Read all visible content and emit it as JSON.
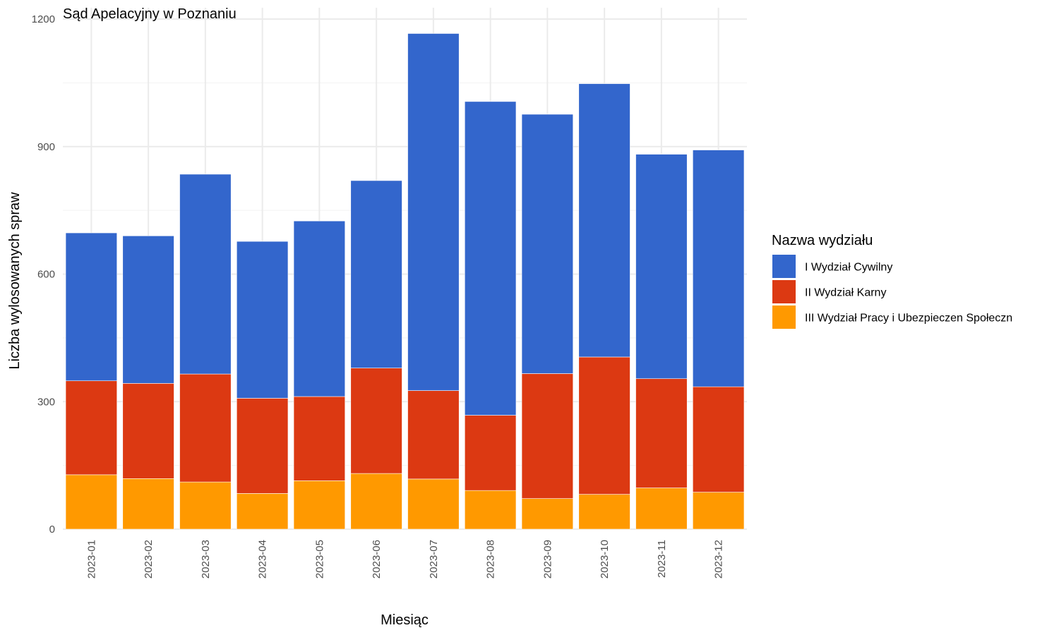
{
  "chart_data": {
    "type": "bar",
    "stacked": true,
    "title": "Sąd Apelacyjny w Poznaniu",
    "xlabel": "Miesiąc",
    "ylabel": "Liczba wylosowanych spraw",
    "ylim": [
      0,
      1200
    ],
    "yticks": [
      0,
      300,
      600,
      900,
      1200
    ],
    "grid": true,
    "legend_title": "Nazwa wydziału",
    "legend_position": "right",
    "categories": [
      "2023-01",
      "2023-02",
      "2023-03",
      "2023-04",
      "2023-05",
      "2023-06",
      "2023-07",
      "2023-08",
      "2023-09",
      "2023-10",
      "2023-11",
      "2023-12"
    ],
    "series": [
      {
        "name": "I Wydział Cywilny",
        "color": "#3366cc",
        "values": [
          348,
          347,
          470,
          369,
          413,
          441,
          840,
          738,
          610,
          643,
          528,
          557
        ]
      },
      {
        "name": "II Wydział Karny",
        "color": "#dc3912",
        "values": [
          221,
          224,
          254,
          224,
          198,
          248,
          208,
          177,
          294,
          323,
          257,
          248
        ]
      },
      {
        "name": "III Wydział Pracy i Ubezpieczen Społeczn",
        "color": "#ff9900",
        "values": [
          128,
          119,
          111,
          84,
          114,
          131,
          118,
          91,
          72,
          82,
          97,
          87
        ]
      }
    ]
  }
}
